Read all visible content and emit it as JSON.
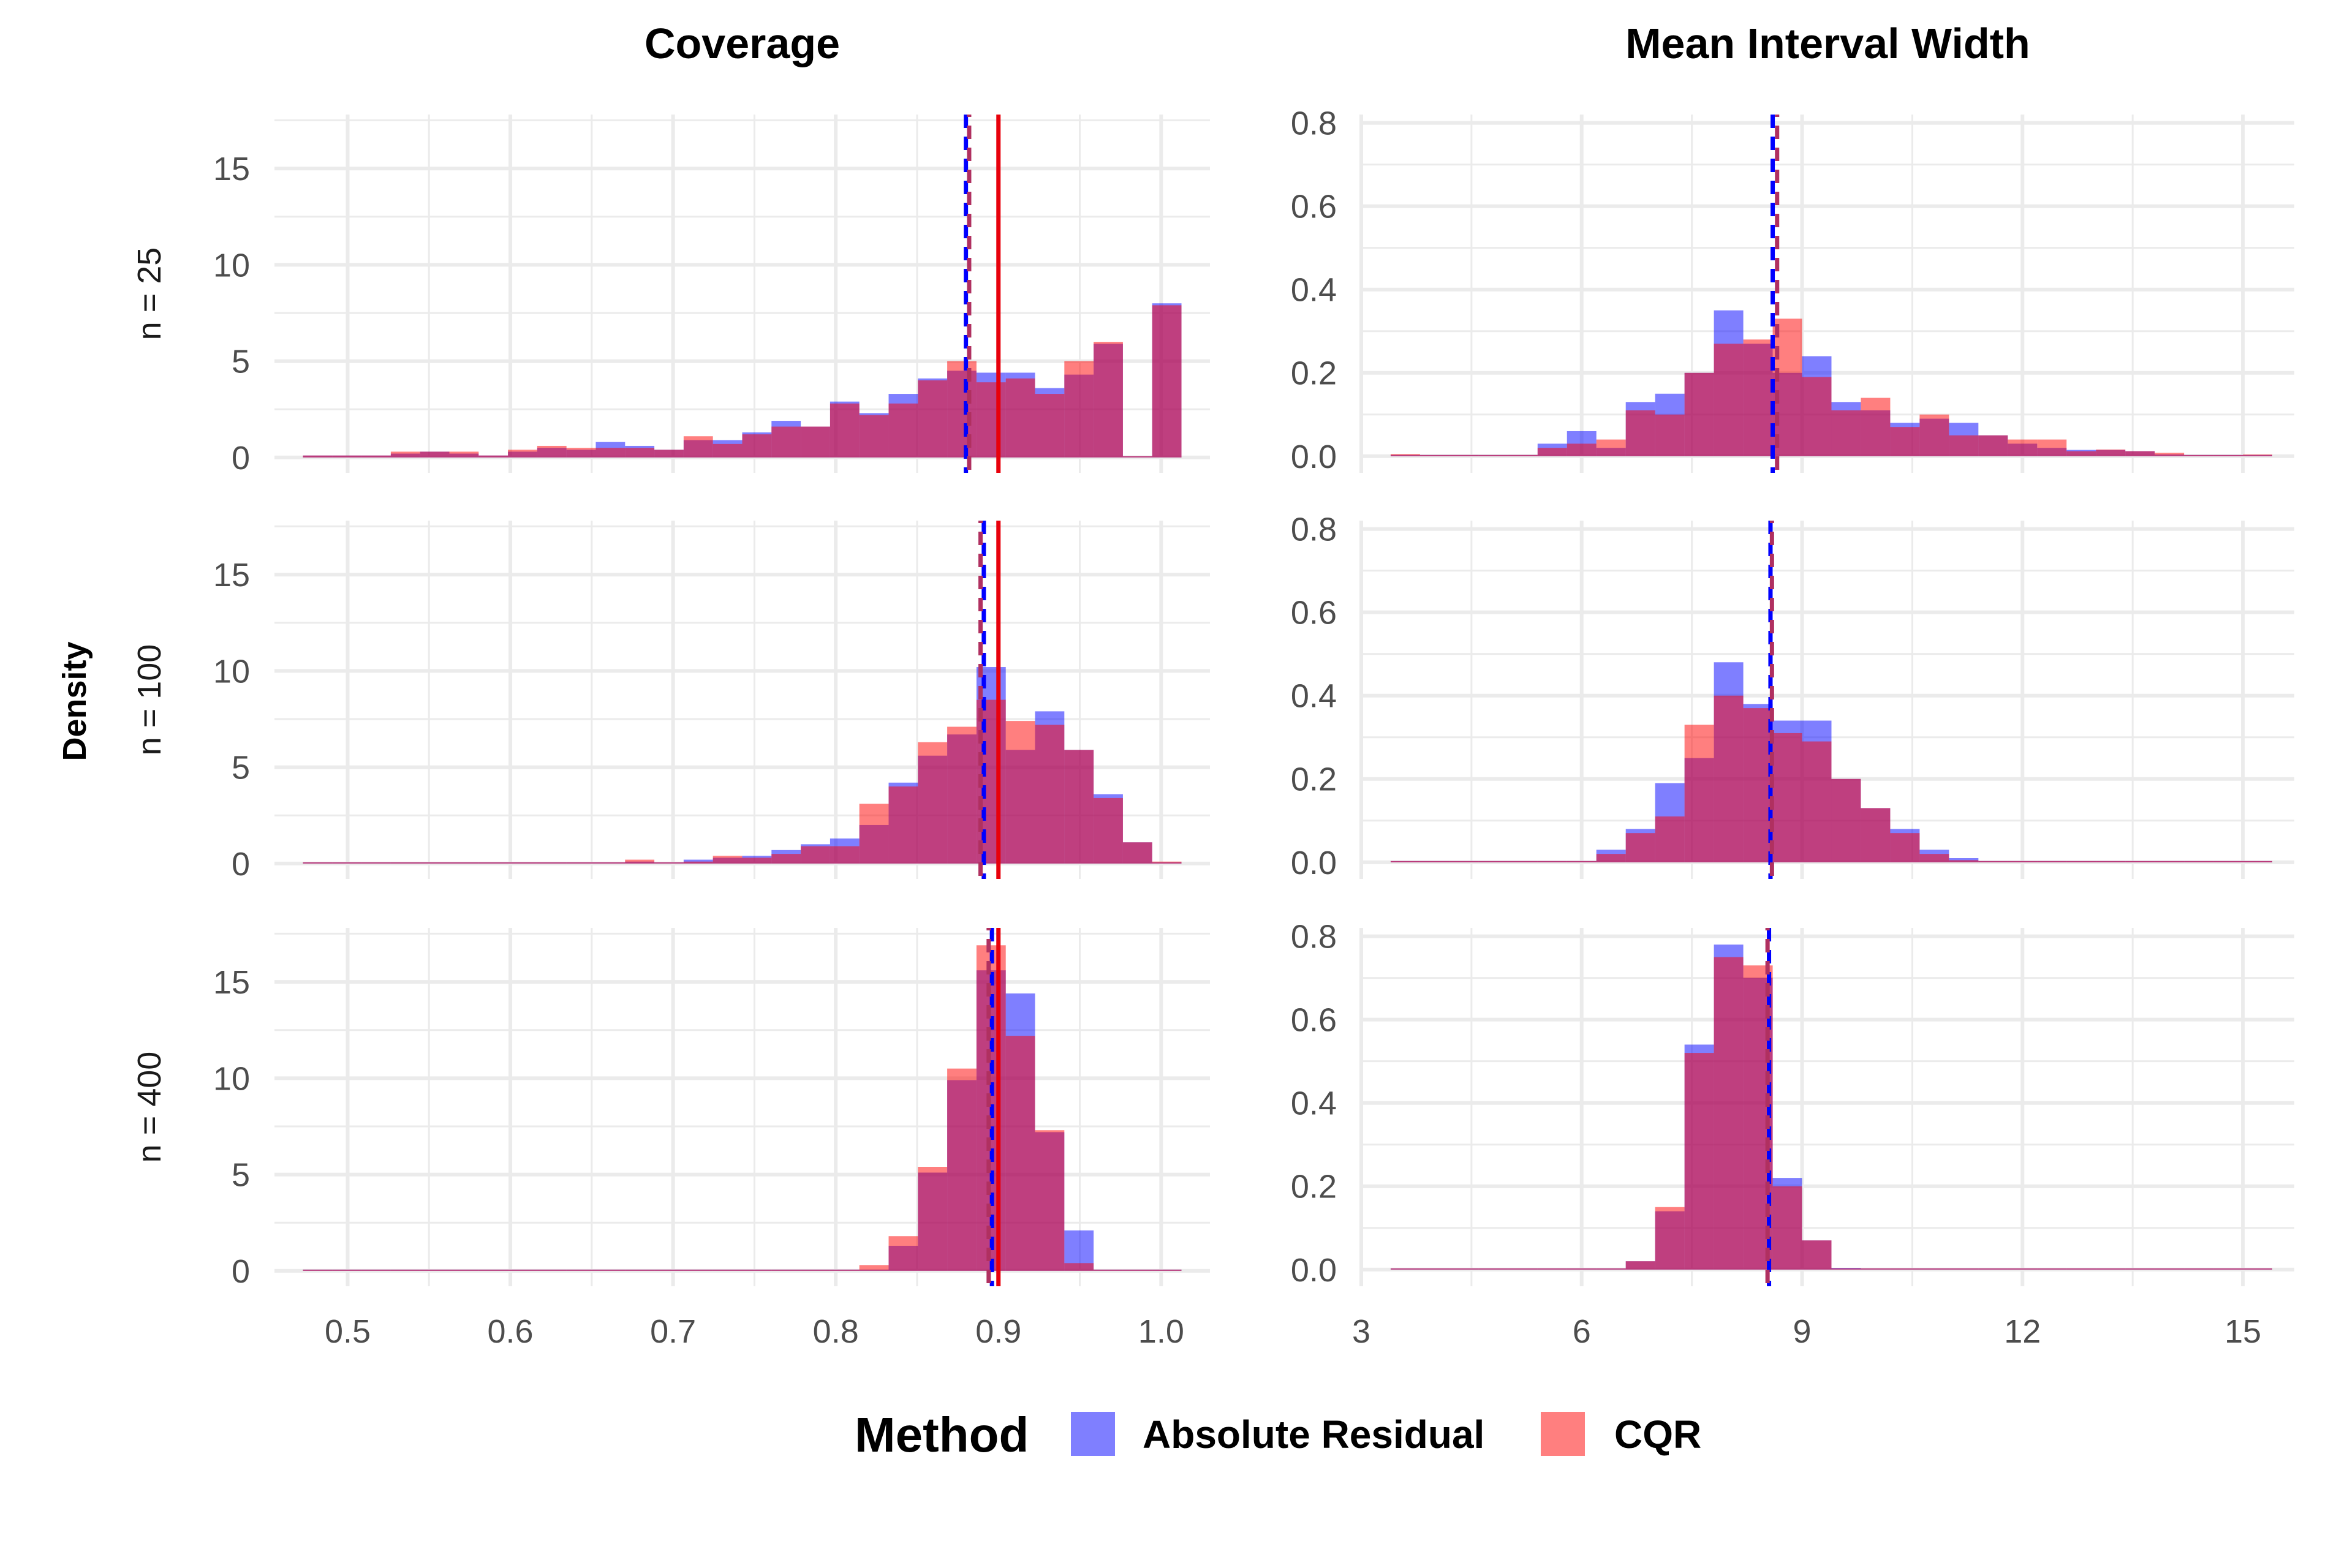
{
  "chart_data": {
    "type": "histogram-facet-grid",
    "y_axis_label": "Density",
    "column_titles": [
      "Coverage",
      "Mean Interval Width"
    ],
    "row_labels": [
      "n = 25",
      "n = 100",
      "n = 400"
    ],
    "legend": {
      "title": "Method",
      "entries": [
        {
          "label": "Absolute Residual",
          "color": "#0000ff"
        },
        {
          "label": "CQR",
          "color": "#ff0000"
        }
      ]
    },
    "colors": {
      "abs": "#0000ff",
      "cqr": "#ff0000",
      "overlap": "#b03060",
      "target_line": "#e8000b",
      "grid": "#ebebeb"
    },
    "columns": [
      {
        "title": "Coverage",
        "xlim": [
          0.455,
          1.03
        ],
        "ylim": [
          -0.8,
          17.8
        ],
        "xticks": [
          0.5,
          0.6,
          0.7,
          0.8,
          0.9,
          1.0
        ],
        "xtick_labels": [
          "0.5",
          "0.6",
          "0.7",
          "0.8",
          "0.9",
          "1.0"
        ],
        "yticks": [
          0,
          5,
          10,
          15
        ],
        "ytick_labels": [
          "0",
          "5",
          "10",
          "15"
        ],
        "target": 0.9,
        "bin_width": 0.018,
        "bin_start": 0.4725,
        "panels": [
          {
            "row": "n = 25",
            "mean_abs": 0.88,
            "mean_cqr": 0.882,
            "abs": [
              0.1,
              0.1,
              0.1,
              0.2,
              0.3,
              0.2,
              0.1,
              0.3,
              0.5,
              0.4,
              0.8,
              0.6,
              0.4,
              0.9,
              0.9,
              1.3,
              1.9,
              1.6,
              2.9,
              2.3,
              3.3,
              4.1,
              4.5,
              4.4,
              4.4,
              3.6,
              4.3,
              5.9,
              0,
              8.0
            ],
            "cqr": [
              0.1,
              0.1,
              0.1,
              0.3,
              0.3,
              0.3,
              0.1,
              0.4,
              0.6,
              0.5,
              0.5,
              0.5,
              0.4,
              1.1,
              0.7,
              1.2,
              1.6,
              1.6,
              2.8,
              2.2,
              2.8,
              4.0,
              5.0,
              3.9,
              4.1,
              3.3,
              5.0,
              6.0,
              0,
              7.9
            ]
          },
          {
            "row": "n = 100",
            "mean_abs": 0.891,
            "mean_cqr": 0.889,
            "abs": [
              0,
              0,
              0,
              0,
              0,
              0,
              0,
              0,
              0,
              0,
              0,
              0.1,
              0,
              0.2,
              0.3,
              0.4,
              0.7,
              1.0,
              1.3,
              2.0,
              4.2,
              5.6,
              6.7,
              10.2,
              5.9,
              7.9,
              5.9,
              3.6,
              1.1,
              0
            ],
            "cqr": [
              0,
              0,
              0,
              0,
              0,
              0,
              0,
              0,
              0,
              0,
              0,
              0.2,
              0,
              0.1,
              0.4,
              0.3,
              0.5,
              0.9,
              0.9,
              3.1,
              4.0,
              6.3,
              7.1,
              8.5,
              7.4,
              7.2,
              5.9,
              3.4,
              1.1,
              0.1
            ]
          },
          {
            "row": "n = 400",
            "mean_abs": 0.896,
            "mean_cqr": 0.894,
            "abs": [
              0,
              0,
              0,
              0,
              0,
              0,
              0,
              0,
              0,
              0,
              0,
              0,
              0,
              0,
              0,
              0,
              0,
              0,
              0,
              0,
              1.3,
              5.1,
              9.9,
              15.6,
              14.4,
              7.2,
              2.1,
              0,
              0,
              0
            ],
            "cqr": [
              0,
              0,
              0,
              0,
              0,
              0,
              0,
              0,
              0,
              0,
              0,
              0,
              0,
              0,
              0,
              0,
              0,
              0,
              0,
              0.3,
              1.8,
              5.4,
              10.5,
              16.9,
              12.2,
              7.3,
              0.4,
              0,
              0,
              0
            ]
          }
        ]
      },
      {
        "title": "Mean Interval Width",
        "xlim": [
          3.0,
          15.7
        ],
        "ylim": [
          -0.04,
          0.82
        ],
        "xticks": [
          3,
          6,
          9,
          12,
          15
        ],
        "xtick_labels": [
          "3",
          "6",
          "9",
          "12",
          "15"
        ],
        "yticks": [
          0.0,
          0.2,
          0.4,
          0.6,
          0.8
        ],
        "ytick_labels": [
          "0.0",
          "0.2",
          "0.4",
          "0.6",
          "0.8"
        ],
        "bin_width": 0.4,
        "bin_start": 3.4,
        "panels": [
          {
            "row": "n = 25",
            "mean_abs": 8.6,
            "mean_cqr": 8.66,
            "abs": [
              0.002,
              0,
              0,
              0,
              0.002,
              0.03,
              0.06,
              0.02,
              0.13,
              0.15,
              0.2,
              0.35,
              0.27,
              0.2,
              0.24,
              0.13,
              0.11,
              0.08,
              0.09,
              0.08,
              0.05,
              0.03,
              0.02,
              0.015,
              0.015,
              0.012,
              0.004,
              0,
              0,
              0
            ],
            "cqr": [
              0.005,
              0.002,
              0.003,
              0.002,
              0.003,
              0.02,
              0.03,
              0.04,
              0.11,
              0.1,
              0.2,
              0.27,
              0.28,
              0.33,
              0.19,
              0.11,
              0.14,
              0.07,
              0.1,
              0.05,
              0.05,
              0.04,
              0.04,
              0.012,
              0.016,
              0.012,
              0.008,
              0.002,
              0,
              0.004
            ]
          },
          {
            "row": "n = 100",
            "mean_abs": 8.57,
            "mean_cqr": 8.59,
            "abs": [
              0,
              0,
              0,
              0,
              0,
              0,
              0.002,
              0.03,
              0.08,
              0.19,
              0.25,
              0.48,
              0.38,
              0.34,
              0.34,
              0.2,
              0.13,
              0.08,
              0.03,
              0.01,
              0.002,
              0.002,
              0.003,
              0,
              0,
              0,
              0,
              0,
              0,
              0
            ],
            "cqr": [
              0,
              0,
              0,
              0,
              0,
              0,
              0.002,
              0.02,
              0.07,
              0.11,
              0.33,
              0.4,
              0.37,
              0.31,
              0.29,
              0.2,
              0.13,
              0.07,
              0.02,
              0.005,
              0.002,
              0.002,
              0,
              0,
              0,
              0,
              0,
              0,
              0,
              0
            ]
          },
          {
            "row": "n = 400",
            "mean_abs": 8.55,
            "mean_cqr": 8.53,
            "abs": [
              0,
              0,
              0,
              0,
              0,
              0,
              0,
              0,
              0.02,
              0.14,
              0.54,
              0.78,
              0.7,
              0.22,
              0.07,
              0.004,
              0,
              0,
              0,
              0,
              0,
              0,
              0,
              0,
              0,
              0,
              0,
              0,
              0,
              0
            ],
            "cqr": [
              0,
              0,
              0,
              0,
              0,
              0,
              0,
              0,
              0.02,
              0.15,
              0.52,
              0.75,
              0.73,
              0.2,
              0.07,
              0.003,
              0.002,
              0,
              0,
              0,
              0,
              0,
              0,
              0,
              0,
              0,
              0,
              0,
              0,
              0
            ]
          }
        ]
      }
    ]
  }
}
